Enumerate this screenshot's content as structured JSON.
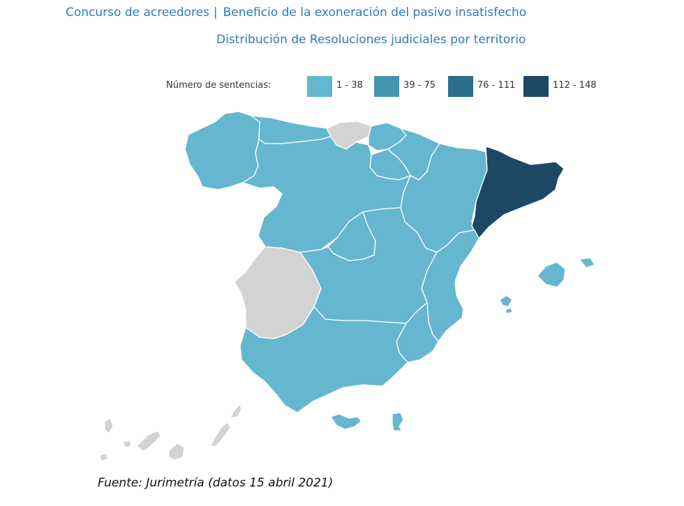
{
  "header": {
    "title": "Concurso de acreedores",
    "separator": "|",
    "subtitle": "Beneficio de la exoneración del pasivo insatisfecho",
    "map_title": "Distribución de Resoluciones judiciales por territorio"
  },
  "legend": {
    "title": "Número de sentencias:",
    "items": [
      {
        "label": "1 - 38",
        "color": "#65b7cf"
      },
      {
        "label": "39 - 75",
        "color": "#4595b1"
      },
      {
        "label": "76 - 111",
        "color": "#2c6f8c"
      },
      {
        "label": "112 - 148",
        "color": "#1c4866"
      }
    ]
  },
  "colors": {
    "no_data": "#d3d3d3",
    "border": "#ffffff"
  },
  "regions": {
    "galicia": "1 - 38",
    "asturias": "1 - 38",
    "cantabria": "no data",
    "pais_vasco": "1 - 38",
    "navarra": "1 - 38",
    "la_rioja": "1 - 38",
    "aragon": "1 - 38",
    "cataluna": "112 - 148",
    "castilla_y_leon": "1 - 38",
    "madrid": "1 - 38",
    "castilla_la_mancha": "1 - 38",
    "extremadura": "no data",
    "comunidad_valenciana": "1 - 38",
    "murcia": "1 - 38",
    "andalucia": "1 - 38",
    "islas_baleares": "1 - 38",
    "islas_canarias": "no data",
    "ceuta": "1 - 38",
    "melilla": "1 - 38"
  },
  "source": "Fuente: Jurimetría (datos 15 abril 2021)"
}
